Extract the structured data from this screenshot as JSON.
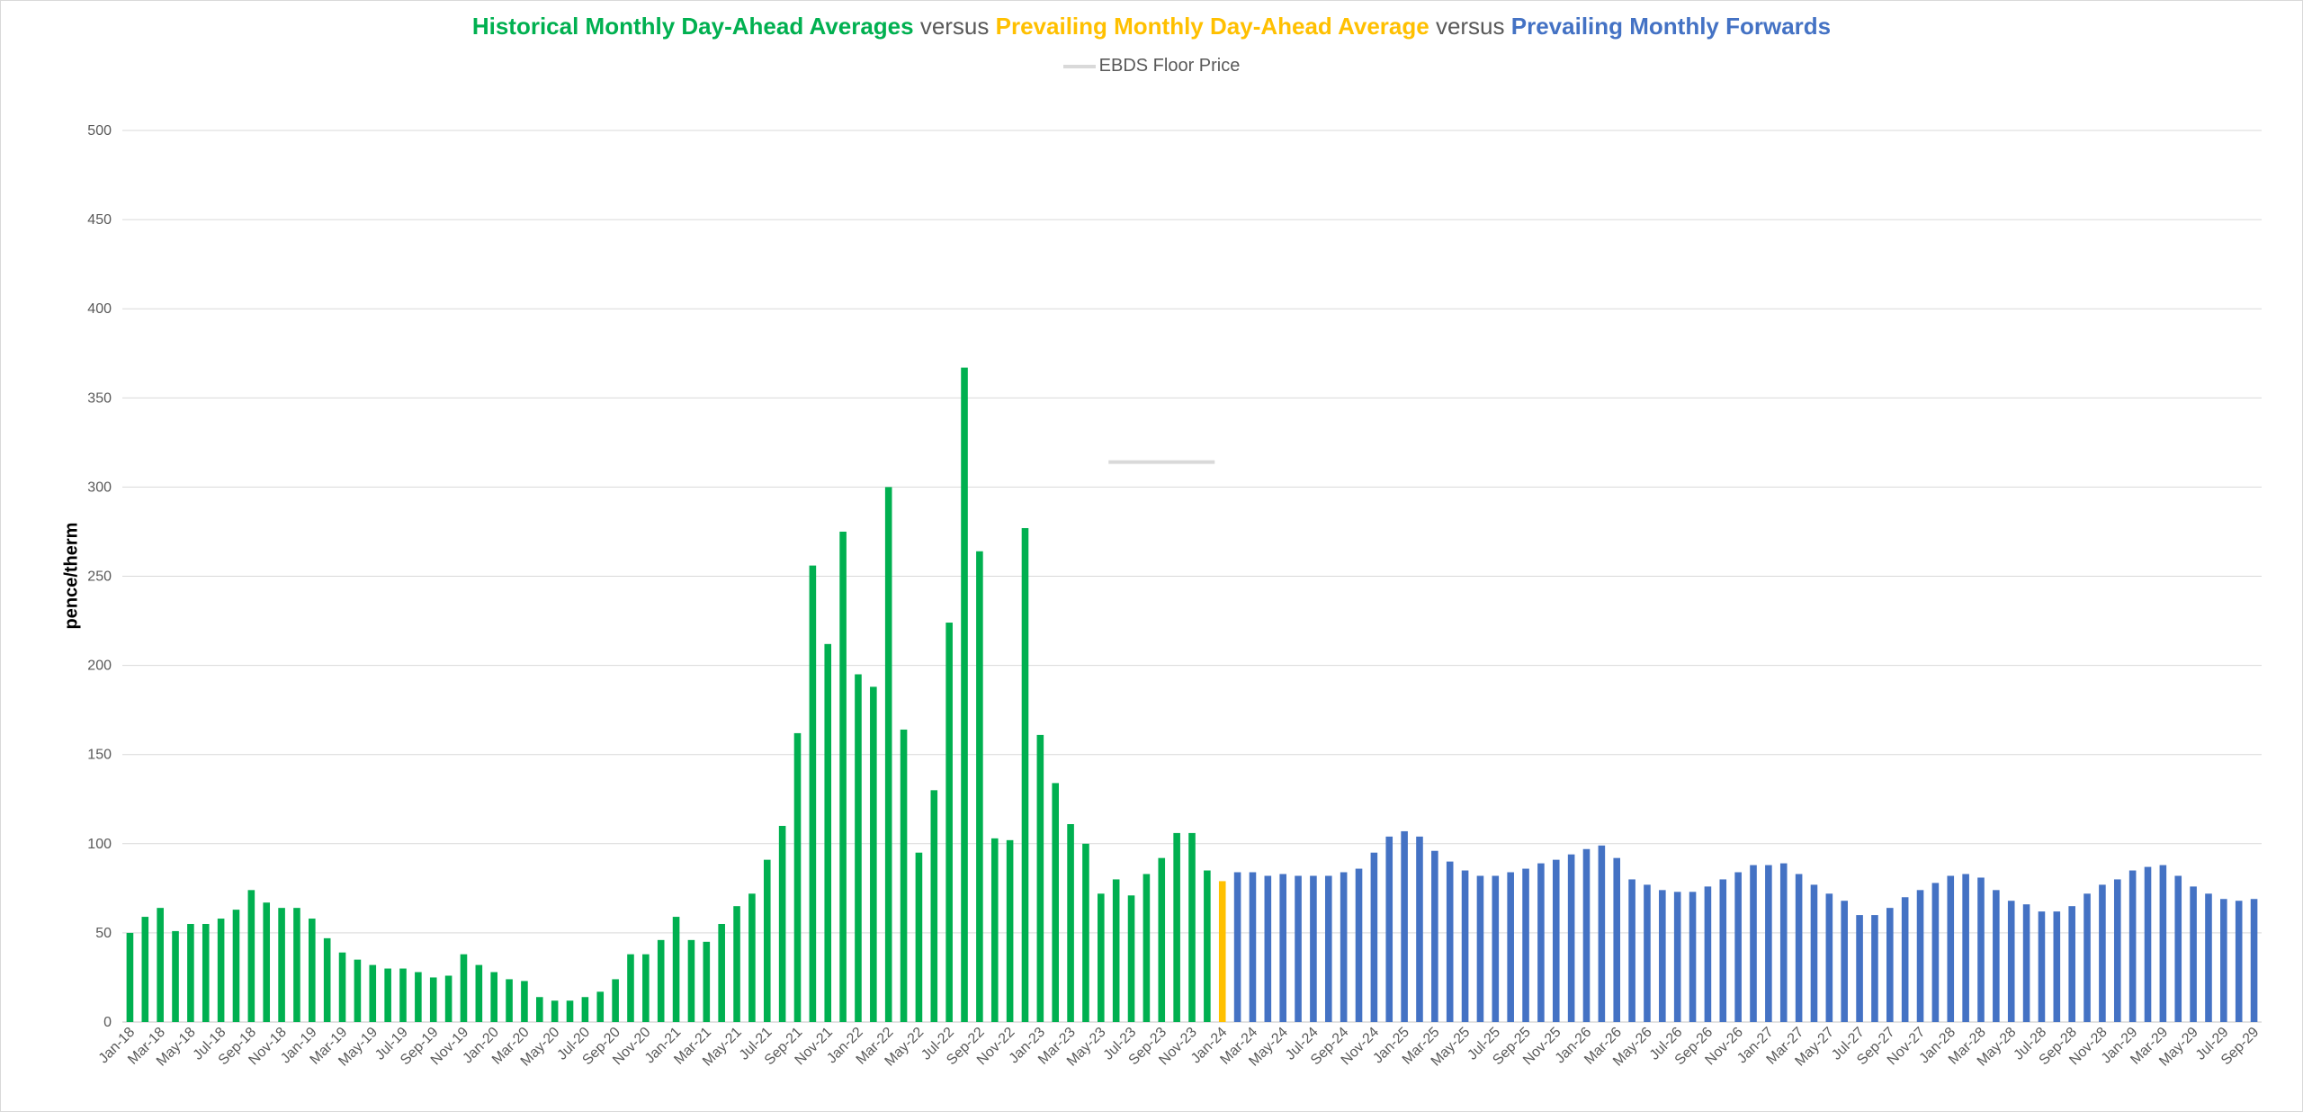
{
  "colors": {
    "historical": "#00b050",
    "prevailing_da": "#ffc000",
    "forwards": "#4472c4",
    "floor": "#d9d9d9",
    "grid": "#d9d9d9",
    "text": "#595959"
  },
  "title": {
    "part1": "Historical Monthly Day-Ahead Averages",
    "sep1": " versus ",
    "part2": "Prevailing Monthly Day-Ahead Average",
    "sep2": " versus ",
    "part3": "Prevailing Monthly Forwards"
  },
  "legend": {
    "floor_label": "EBDS Floor Price"
  },
  "chart_data": {
    "type": "bar",
    "ylabel": "pence/therm",
    "xlabel": "",
    "ylim": [
      0,
      500
    ],
    "yticks": [
      0,
      50,
      100,
      150,
      200,
      250,
      300,
      350,
      400,
      450,
      500
    ],
    "grid": true,
    "legend_position": "top",
    "start_month": "Jan-18",
    "xtick_labels": [
      "Jan-18",
      "Mar-18",
      "May-18",
      "Jul-18",
      "Sep-18",
      "Nov-18",
      "Jan-19",
      "Mar-19",
      "May-19",
      "Jul-19",
      "Sep-19",
      "Nov-19",
      "Jan-20",
      "Mar-20",
      "May-20",
      "Jul-20",
      "Sep-20",
      "Nov-20",
      "Jan-21",
      "Mar-21",
      "May-21",
      "Jul-21",
      "Sep-21",
      "Nov-21",
      "Jan-22",
      "Mar-22",
      "May-22",
      "Jul-22",
      "Sep-22",
      "Nov-22",
      "Jan-23",
      "Mar-23",
      "May-23",
      "Jul-23",
      "Sep-23",
      "Nov-23",
      "Jan-24",
      "Mar-24",
      "May-24",
      "Jul-24",
      "Sep-24",
      "Nov-24",
      "Jan-25",
      "Mar-25",
      "May-25",
      "Jul-25",
      "Sep-25",
      "Nov-25",
      "Jan-26",
      "Mar-26",
      "May-26",
      "Jul-26",
      "Sep-26",
      "Nov-26",
      "Jan-27",
      "Mar-27",
      "May-27",
      "Jul-27",
      "Sep-27",
      "Nov-27",
      "Jan-28",
      "Mar-28",
      "May-28",
      "Jul-28",
      "Sep-28",
      "Nov-28",
      "Jan-29",
      "Mar-29",
      "May-29",
      "Jul-29",
      "Sep-29"
    ],
    "series": [
      {
        "name": "Historical Monthly Day-Ahead Averages",
        "start": "Jan-18",
        "values": [
          50,
          59,
          64,
          51,
          55,
          55,
          58,
          63,
          74,
          67,
          64,
          64,
          58,
          47,
          39,
          35,
          32,
          30,
          30,
          28,
          25,
          26,
          38,
          32,
          28,
          24,
          23,
          14,
          12,
          12,
          14,
          17,
          24,
          38,
          38,
          46,
          59,
          46,
          45,
          55,
          65,
          72,
          91,
          110,
          162,
          256,
          212,
          275,
          195,
          188,
          300,
          164,
          95,
          130,
          224,
          367,
          264,
          103,
          102,
          277,
          161,
          134,
          111,
          100,
          72,
          80,
          71,
          83,
          92,
          106,
          106,
          85
        ]
      },
      {
        "name": "Prevailing Monthly Day-Ahead Average",
        "start": "Jan-24",
        "values": [
          79
        ]
      },
      {
        "name": "Prevailing Monthly Forwards",
        "start": "Feb-24",
        "values": [
          84,
          84,
          82,
          83,
          82,
          82,
          82,
          84,
          86,
          95,
          104,
          107,
          104,
          96,
          90,
          85,
          82,
          82,
          84,
          86,
          89,
          91,
          94,
          97,
          99,
          92,
          80,
          77,
          74,
          73,
          73,
          76,
          80,
          84,
          88,
          88,
          89,
          83,
          77,
          72,
          68,
          60,
          60,
          64,
          70,
          74,
          78,
          82,
          83,
          81,
          74,
          68,
          66,
          62,
          62,
          65,
          72,
          77,
          80,
          85,
          87,
          88,
          82,
          76,
          72,
          69,
          68,
          69
        ]
      }
    ],
    "floor_price": {
      "name": "EBDS Floor Price",
      "value": 314,
      "from": "Jun-23",
      "to": "Dec-23"
    }
  }
}
